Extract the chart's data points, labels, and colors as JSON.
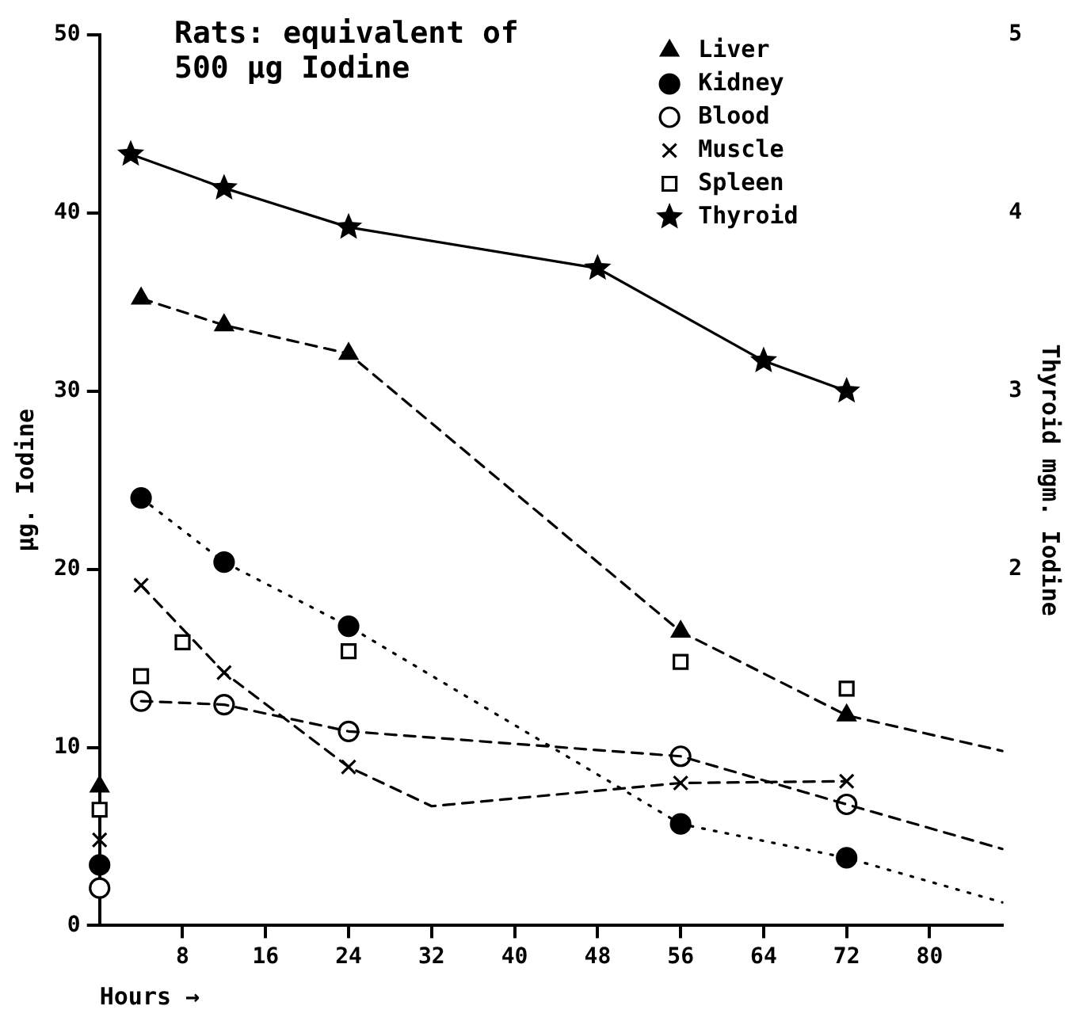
{
  "chart_data": {
    "type": "line",
    "title": "Rats: equivalent of\n500 µg Iodine",
    "xlabel": "Hours →",
    "ylabel": "µg. Iodine",
    "y2label": "Thyroid mgm. Iodine",
    "xlim": [
      0,
      87
    ],
    "xticks": [
      8,
      16,
      24,
      32,
      40,
      48,
      56,
      64,
      72,
      80
    ],
    "ylim": [
      0,
      50
    ],
    "yticks": [
      0,
      10,
      20,
      30,
      40,
      50
    ],
    "y2lim": [
      0,
      5
    ],
    "y2ticks": [
      2,
      3,
      4,
      5
    ],
    "legend": "top right",
    "grid": false,
    "series": [
      {
        "color": "#000000",
        "marker": "none",
        "line_style": "dashed",
        "x": [
          4,
          12,
          24,
          56,
          72,
          87
        ],
        "values": [
          35.2,
          33.7,
          32.1,
          16.5,
          11.8,
          9.8
        ]
      },
      {
        "color": "#000000",
        "marker": "none",
        "line_style": "dotted",
        "x": [
          4,
          12,
          24,
          56,
          72,
          87
        ],
        "values": [
          24.0,
          20.4,
          16.8,
          5.7,
          3.8,
          1.3
        ]
      },
      {
        "color": "#000000",
        "marker": "none",
        "line_style": "dashed",
        "x": [
          4,
          12,
          24,
          56,
          72,
          87
        ],
        "values": [
          12.6,
          12.4,
          10.9,
          9.5,
          6.8,
          4.3
        ]
      },
      {
        "color": "#000000",
        "marker": "none",
        "line_style": "dashed",
        "x": [
          4,
          12,
          24,
          32,
          56,
          72
        ],
        "values": [
          19.1,
          14.2,
          8.9,
          6.7,
          8.0,
          8.1
        ]
      },
      {
        "type": "scatter",
        "name": "Liver",
        "color": "#000000",
        "marker": "triangle",
        "x": [
          0,
          4,
          12,
          24,
          56,
          72
        ],
        "values": [
          7.8,
          35.2,
          33.7,
          32.1,
          16.5,
          11.8
        ]
      },
      {
        "type": "scatter",
        "name": "Kidney",
        "color": "#000000",
        "marker": "circle",
        "x": [
          0,
          4,
          12,
          24,
          56,
          72
        ],
        "values": [
          3.4,
          24.0,
          20.4,
          16.8,
          5.7,
          3.8
        ]
      },
      {
        "type": "scatter",
        "name": "Blood",
        "color": "#000000",
        "marker": "circle",
        "x": [
          0,
          4,
          12,
          24,
          56,
          72
        ],
        "values": [
          2.1,
          12.6,
          12.4,
          10.9,
          9.5,
          6.8
        ]
      },
      {
        "type": "scatter",
        "name": "Muscle",
        "color": "#000000",
        "marker": "cross",
        "x": [
          0,
          4,
          12,
          24,
          56,
          72
        ],
        "values": [
          4.8,
          19.1,
          14.2,
          8.9,
          8.0,
          8.1
        ]
      },
      {
        "type": "scatter",
        "name": "Spleen",
        "color": "#000000",
        "marker": "square",
        "x": [
          0,
          4,
          8,
          24,
          56,
          72
        ],
        "values": [
          6.5,
          14.0,
          15.9,
          15.4,
          14.8,
          13.3
        ]
      },
      {
        "name": "Thyroid",
        "color": "#000000",
        "marker": "star",
        "line_style": "solid",
        "axis": "y2",
        "x": [
          3,
          12,
          24,
          48,
          64,
          72
        ],
        "values": [
          4.33,
          4.14,
          3.92,
          3.69,
          3.17,
          3.0
        ]
      }
    ]
  }
}
